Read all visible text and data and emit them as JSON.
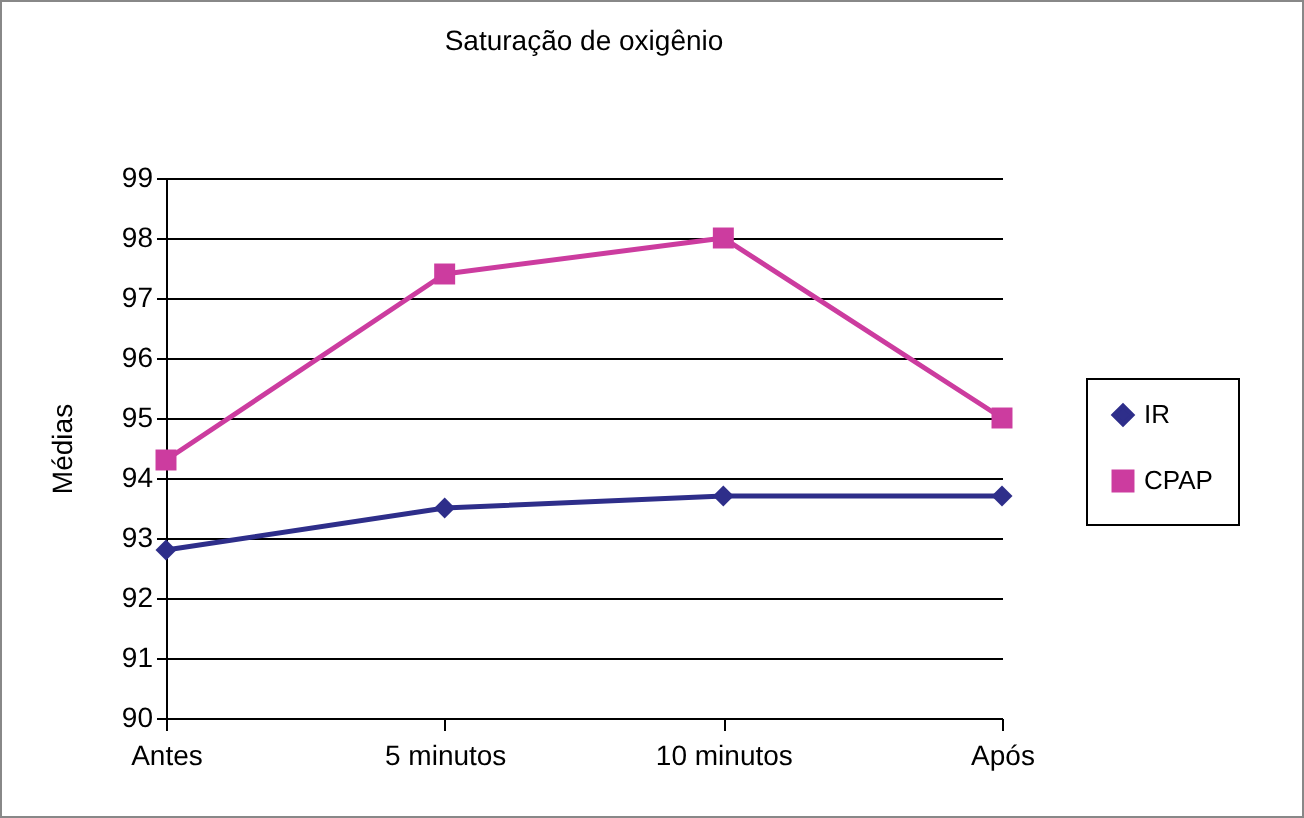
{
  "chart_data": {
    "type": "line",
    "title": "Saturação de oxigênio",
    "ylabel": "Médias",
    "categories": [
      "Antes",
      "5 minutos",
      "10 minutos",
      "Após"
    ],
    "series": [
      {
        "name": "IR",
        "color": "#2e2e8a",
        "marker": "diamond",
        "values": [
          92.8,
          93.5,
          93.7,
          93.7
        ]
      },
      {
        "name": "CPAP",
        "color": "#cc3c9f",
        "marker": "square",
        "values": [
          94.3,
          97.4,
          98.0,
          95.0
        ]
      }
    ],
    "ylim": [
      90,
      99
    ],
    "yticks": [
      90,
      91,
      92,
      93,
      94,
      95,
      96,
      97,
      98,
      99
    ],
    "grid": "y",
    "legend": "right",
    "line_style": "solid"
  }
}
